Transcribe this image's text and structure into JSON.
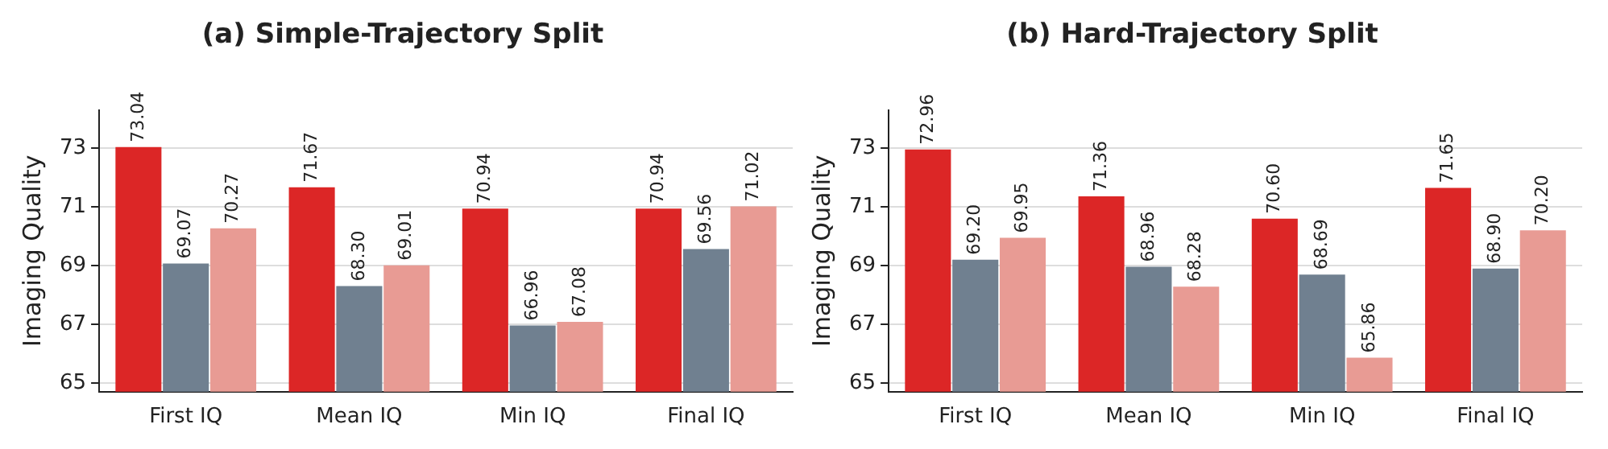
{
  "chart_data": [
    {
      "type": "bar",
      "title": "(a) Simple-Trajectory Split",
      "ylabel": "Imaging Quality",
      "categories": [
        "First IQ",
        "Mean IQ",
        "Min IQ",
        "Final IQ"
      ],
      "series": [
        {
          "color": "#dc2626",
          "values": [
            73.04,
            71.67,
            70.94,
            70.94
          ],
          "value_labels": [
            "73.04",
            "71.67",
            "70.94",
            "70.94"
          ]
        },
        {
          "color": "#708090",
          "values": [
            69.07,
            68.3,
            66.96,
            69.56
          ],
          "value_labels": [
            "69.07",
            "68.30",
            "66.96",
            "69.56"
          ]
        },
        {
          "color": "#e89b94",
          "values": [
            70.27,
            69.01,
            67.08,
            71.02
          ],
          "value_labels": [
            "70.27",
            "69.01",
            "67.08",
            "71.02"
          ]
        }
      ],
      "ylim": [
        64.7,
        74.3
      ],
      "yticks": [
        65,
        67,
        69,
        71,
        73
      ],
      "grid": "y",
      "legend": false
    },
    {
      "type": "bar",
      "title": "(b) Hard-Trajectory Split",
      "ylabel": "Imaging Quality",
      "categories": [
        "First IQ",
        "Mean IQ",
        "Min IQ",
        "Final IQ"
      ],
      "series": [
        {
          "color": "#dc2626",
          "values": [
            72.96,
            71.36,
            70.6,
            71.65
          ],
          "value_labels": [
            "72.96",
            "71.36",
            "70.60",
            "71.65"
          ]
        },
        {
          "color": "#708090",
          "values": [
            69.2,
            68.96,
            68.69,
            68.9
          ],
          "value_labels": [
            "69.20",
            "68.96",
            "68.69",
            "68.90"
          ]
        },
        {
          "color": "#e89b94",
          "values": [
            69.95,
            68.28,
            65.86,
            70.2
          ],
          "value_labels": [
            "69.95",
            "68.28",
            "65.86",
            "70.20"
          ]
        }
      ],
      "ylim": [
        64.7,
        74.3
      ],
      "yticks": [
        65,
        67,
        69,
        71,
        73
      ],
      "grid": "y",
      "legend": false
    }
  ]
}
